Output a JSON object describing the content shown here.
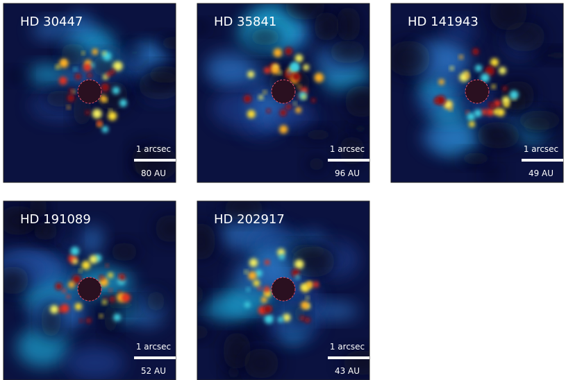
{
  "panels": [
    {
      "title": "HD 30447",
      "scale_label": "1 arcsec",
      "distance_label": "80 AU"
    },
    {
      "title": "HD 35841",
      "scale_label": "1 arcsec",
      "distance_label": "96 AU"
    },
    {
      "title": "HD 141943",
      "scale_label": "1 arcsec",
      "distance_label": "49 AU"
    },
    {
      "title": "HD 191089",
      "scale_label": "1 arcsec",
      "distance_label": "52 AU"
    },
    {
      "title": "HD 202917",
      "scale_label": "1 arcsec",
      "distance_label": "43 AU"
    }
  ]
}
